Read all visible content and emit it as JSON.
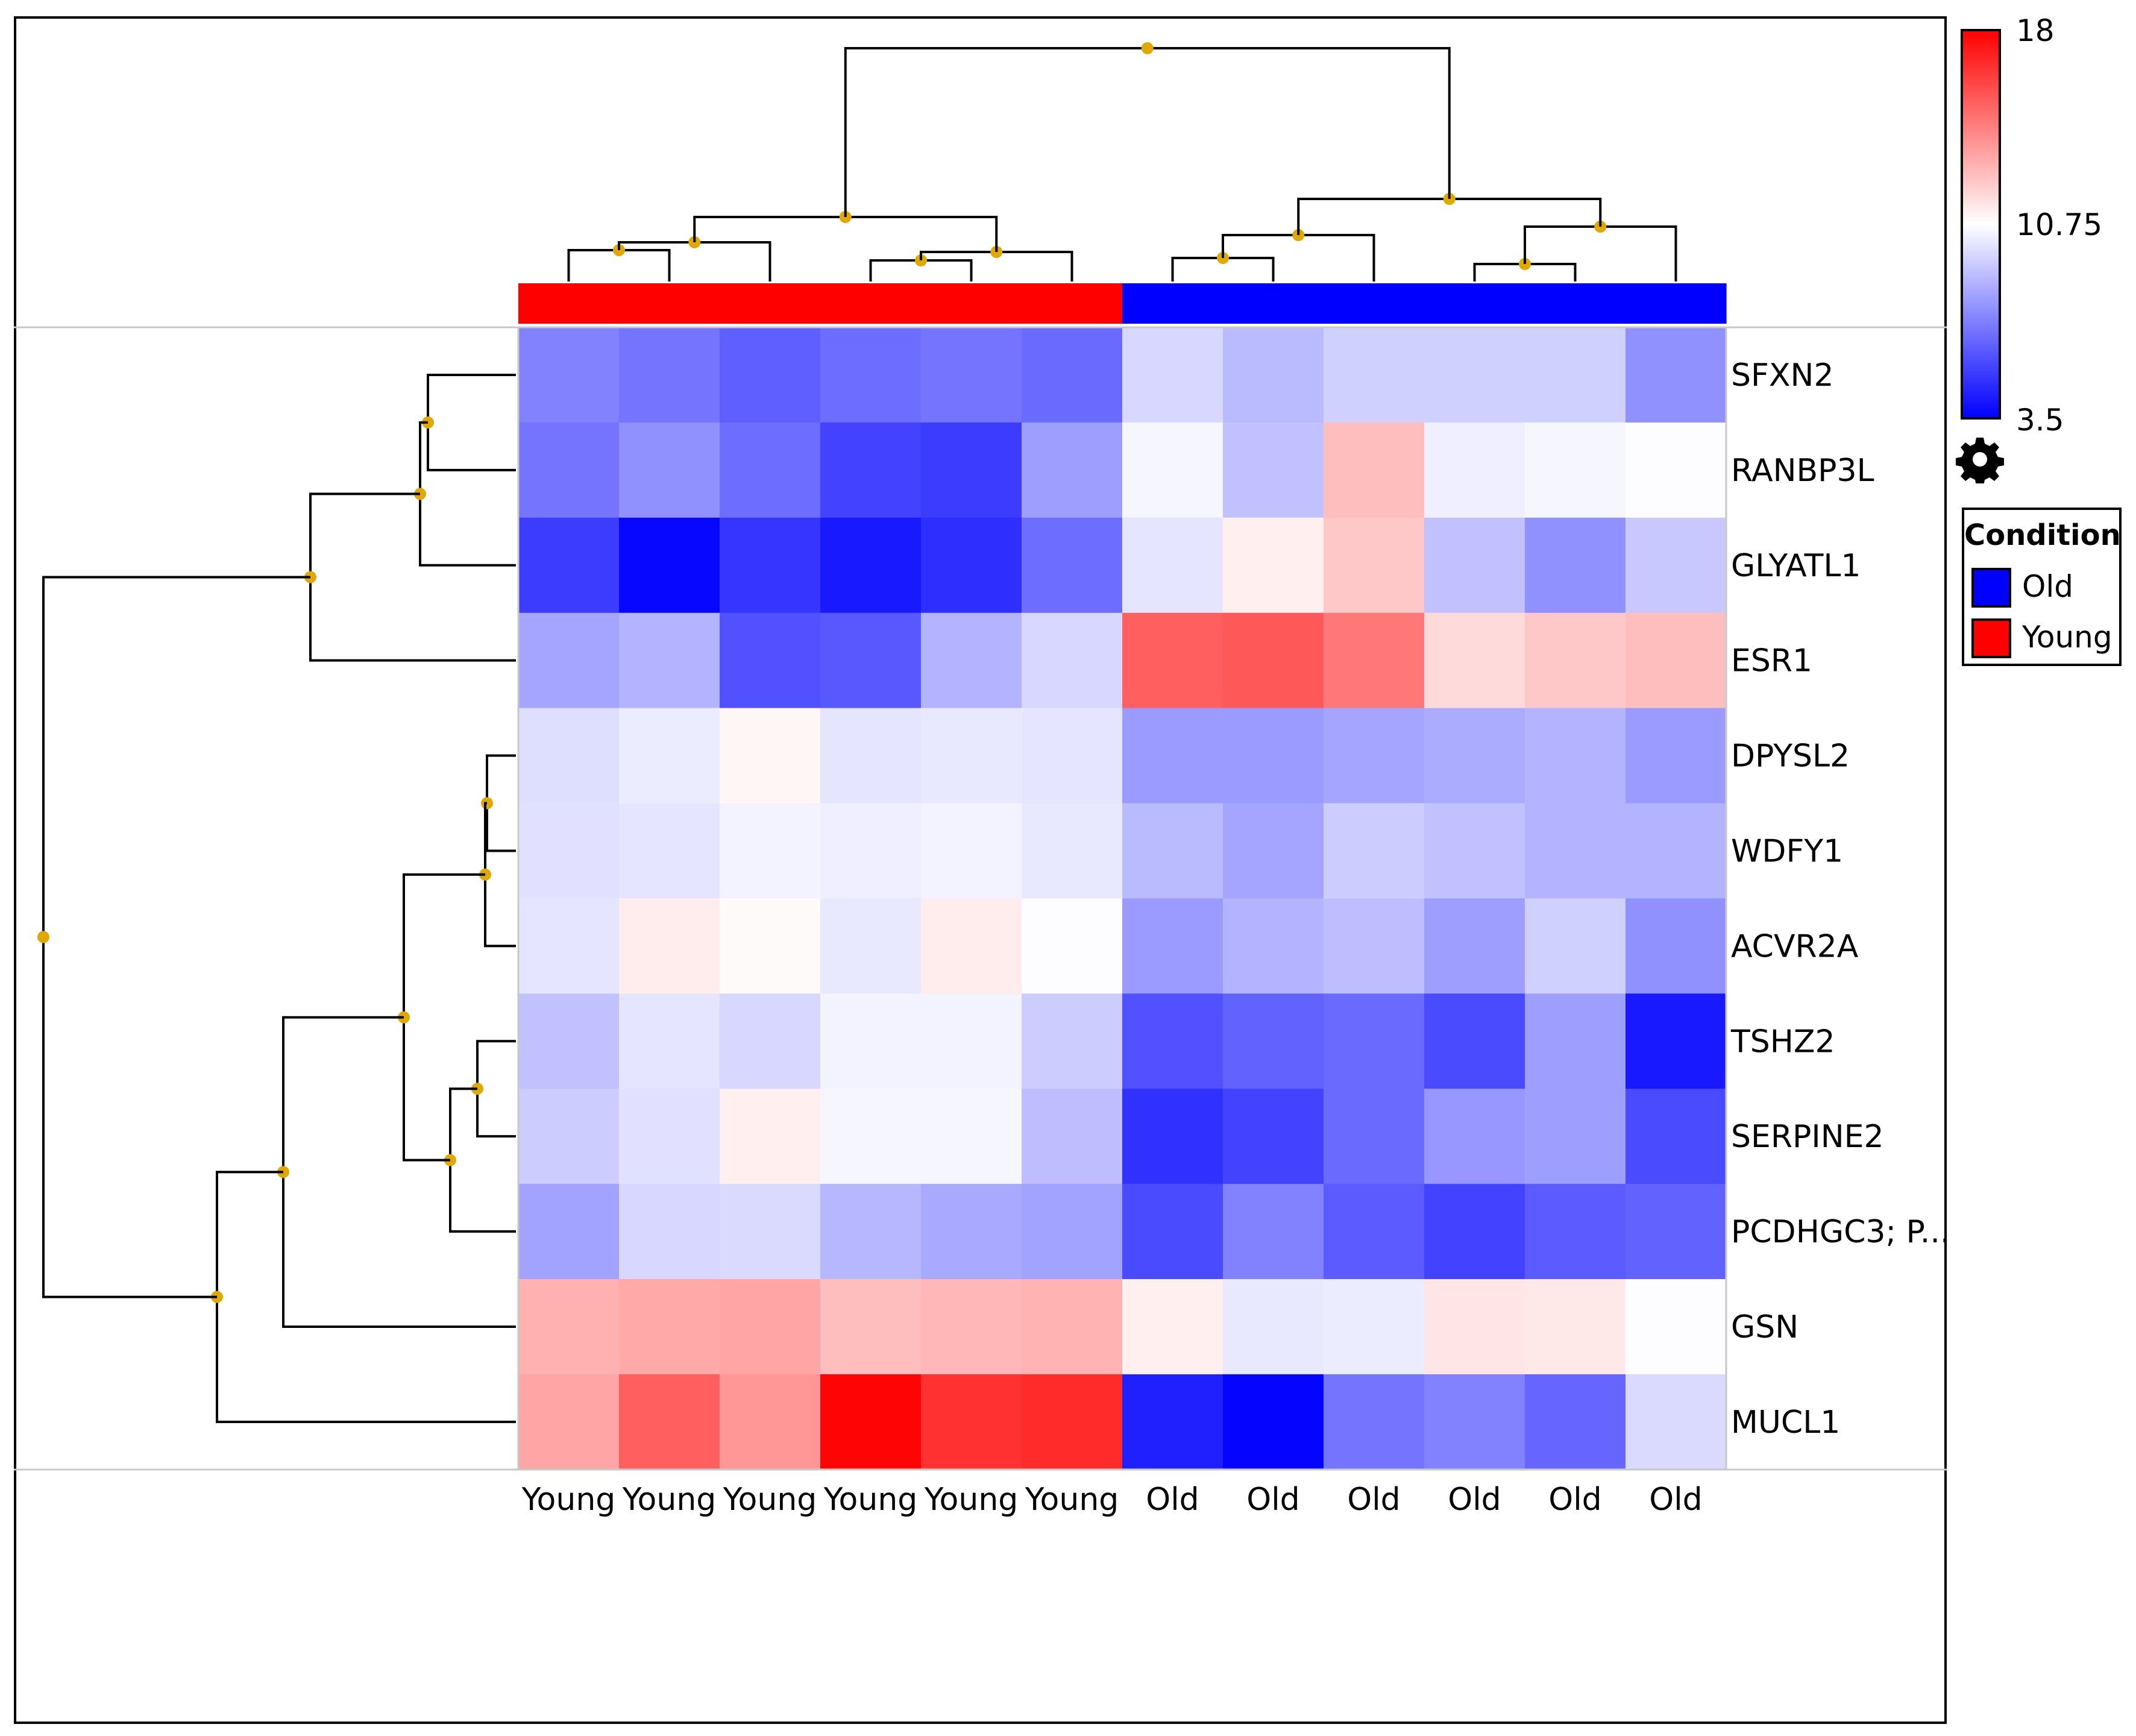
{
  "chart_data": {
    "type": "heatmap",
    "title": "",
    "columns": [
      "Young",
      "Young",
      "Young",
      "Young",
      "Young",
      "Young",
      "Old",
      "Old",
      "Old",
      "Old",
      "Old",
      "Old"
    ],
    "rows": [
      "SFXN2",
      "RANBP3L",
      "GLYATL1",
      "ESR1",
      "DPYSL2",
      "WDFY1",
      "ACVR2A",
      "TSHZ2",
      "SERPINE2",
      "PCDHGC3; P...",
      "GSN",
      "MUCL1"
    ],
    "values": [
      [
        7.2,
        6.8,
        6.2,
        6.6,
        6.8,
        6.5,
        9.6,
        8.8,
        9.4,
        9.4,
        9.4,
        7.6
      ],
      [
        6.8,
        7.6,
        6.6,
        5.4,
        5.2,
        8.0,
        10.5,
        9.0,
        12.6,
        10.3,
        10.5,
        10.7
      ],
      [
        5.2,
        3.7,
        5.0,
        4.2,
        4.8,
        6.6,
        10.0,
        11.2,
        12.3,
        9.0,
        7.6,
        9.2
      ],
      [
        8.2,
        8.6,
        5.8,
        6.0,
        8.6,
        9.6,
        15.3,
        15.5,
        14.6,
        11.8,
        12.3,
        12.6
      ],
      [
        9.8,
        10.2,
        11.0,
        10.0,
        10.1,
        10.0,
        7.9,
        7.9,
        8.2,
        8.4,
        8.6,
        7.9
      ],
      [
        9.9,
        10.0,
        10.4,
        10.3,
        10.4,
        10.1,
        8.8,
        8.2,
        9.3,
        9.0,
        8.6,
        8.6
      ],
      [
        10.0,
        11.3,
        10.9,
        10.1,
        11.3,
        10.7,
        7.9,
        8.6,
        8.9,
        8.0,
        9.4,
        7.6
      ],
      [
        9.0,
        10.0,
        9.6,
        10.4,
        10.4,
        9.3,
        5.8,
        6.3,
        6.5,
        5.6,
        8.0,
        4.2
      ],
      [
        9.3,
        9.9,
        11.2,
        10.5,
        10.5,
        8.9,
        4.9,
        5.4,
        6.5,
        7.8,
        8.0,
        5.6
      ],
      [
        8.1,
        9.6,
        9.7,
        8.7,
        8.3,
        8.1,
        5.6,
        7.2,
        6.1,
        5.4,
        6.1,
        6.3
      ],
      [
        13.0,
        13.2,
        13.3,
        12.6,
        12.8,
        12.9,
        11.2,
        10.1,
        10.2,
        11.5,
        11.4,
        10.7
      ],
      [
        13.3,
        15.3,
        13.7,
        17.9,
        16.6,
        16.8,
        4.4,
        3.6,
        6.8,
        7.2,
        6.4,
        9.7
      ]
    ],
    "color_scale": {
      "min": 3.5,
      "mid": 10.75,
      "max": 18,
      "min_color": "#0000ff",
      "mid_color": "#ffffff",
      "max_color": "#ff0000",
      "tick_labels": [
        "18",
        "10.75",
        "3.5"
      ]
    },
    "column_annotation": {
      "title": "Condition",
      "values": [
        "Young",
        "Young",
        "Young",
        "Young",
        "Young",
        "Young",
        "Old",
        "Old",
        "Old",
        "Old",
        "Old",
        "Old"
      ]
    },
    "legend": {
      "title": "Condition",
      "items": [
        {
          "label": "Old",
          "color": "#0000ff"
        },
        {
          "label": "Young",
          "color": "#ff0000"
        }
      ]
    },
    "column_dendrogram": [
      [
        0,
        1
      ],
      [
        12,
        2
      ],
      [
        3,
        4
      ],
      [
        14,
        5
      ],
      [
        13,
        15
      ],
      [
        6,
        7
      ],
      [
        17,
        8
      ],
      [
        9,
        10
      ],
      [
        19,
        11
      ],
      [
        18,
        20
      ],
      [
        16,
        21
      ]
    ],
    "row_dendrogram": [
      [
        0,
        1
      ],
      [
        12,
        2
      ],
      [
        13,
        3
      ],
      [
        4,
        5
      ],
      [
        15,
        6
      ],
      [
        7,
        8
      ],
      [
        17,
        9
      ],
      [
        16,
        18
      ],
      [
        19,
        10
      ],
      [
        20,
        11
      ],
      [
        14,
        21
      ]
    ]
  },
  "colors": {
    "dendrogram_node": "#e0a800",
    "frame": "#000000",
    "grid_line": "#c8c8c8"
  },
  "icons": {
    "settings": "gear-icon"
  }
}
